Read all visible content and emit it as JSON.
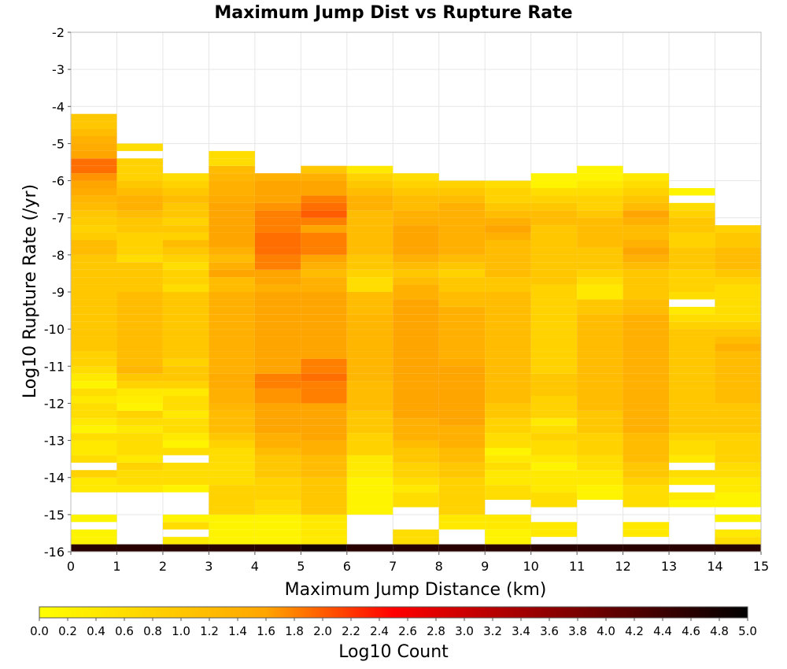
{
  "chart_data": {
    "type": "heatmap",
    "title": "Maximum Jump Dist vs Rupture Rate",
    "xlabel": "Maximum Jump Distance (km)",
    "ylabel": "Log10 Rupture Rate (/yr)",
    "xlim": [
      0,
      15
    ],
    "ylim": [
      -16,
      -2
    ],
    "x_ticks": [
      0,
      1,
      2,
      3,
      4,
      5,
      6,
      7,
      8,
      9,
      10,
      11,
      12,
      13,
      14,
      15
    ],
    "y_ticks": [
      -16,
      -15,
      -14,
      -13,
      -12,
      -11,
      -10,
      -9,
      -8,
      -7,
      -6,
      -5,
      -4,
      -3,
      -2
    ],
    "grid": true,
    "x_bins_center": [
      0.5,
      1.5,
      2.5,
      3.5,
      4.5,
      5.5,
      6.5,
      7.5,
      8.5,
      9.5,
      10.5,
      11.5,
      12.5,
      13.5,
      14.5
    ],
    "y_bin_width": 0.2,
    "columns": [
      {
        "x": 0.5,
        "y_start": -15.9,
        "values": [
          4.6,
          0.2,
          0.2,
          0,
          0.2,
          0,
          0,
          0,
          0.4,
          0.4,
          0.8,
          0,
          0.6,
          0.4,
          0.4,
          0.6,
          0.2,
          0.4,
          0.6,
          0.6,
          0.4,
          0.6,
          0.2,
          0.4,
          0.6,
          0.8,
          0.8,
          1.0,
          1.0,
          1.0,
          1.0,
          1.0,
          1.0,
          1.0,
          1.0,
          1.0,
          1.0,
          1.0,
          1.0,
          1.0,
          1.2,
          1.2,
          0.9,
          0.8,
          0.9,
          1.0,
          1.2,
          1.3,
          1.5,
          1.6,
          1.7,
          1.9,
          1.9,
          1.6,
          1.5,
          1.4,
          1.2,
          1.0,
          1.0
        ]
      },
      {
        "x": 1.5,
        "y_start": -15.9,
        "values": [
          4.6,
          0,
          0,
          0,
          0,
          0,
          0,
          0,
          0.4,
          0.6,
          0.6,
          0.8,
          0.4,
          0.6,
          0.6,
          0.6,
          0.4,
          0.6,
          0.8,
          0.2,
          0.3,
          0.4,
          0.8,
          1.0,
          1.3,
          1.2,
          1.2,
          1.2,
          1.2,
          1.2,
          1.2,
          1.2,
          1.2,
          1.2,
          1.2,
          1.0,
          1.0,
          1.0,
          1.0,
          0.6,
          0.8,
          0.8,
          0.8,
          1.0,
          1.0,
          1.2,
          1.4,
          1.4,
          1.2,
          1.0,
          0.8,
          0.8,
          0.8,
          0,
          0.6
        ]
      },
      {
        "x": 2.5,
        "y_start": -15.9,
        "values": [
          4.6,
          0.4,
          0,
          0.6,
          0.2,
          0,
          0,
          0,
          0.2,
          0.6,
          0.6,
          0.6,
          0,
          0.6,
          0.2,
          0.4,
          0.6,
          0.6,
          0.4,
          0.6,
          0.6,
          0.4,
          0.8,
          1.0,
          1.0,
          0.8,
          1.0,
          1.0,
          1.0,
          1.0,
          1.0,
          1.0,
          1.0,
          1.0,
          1.0,
          0.6,
          0.8,
          0.8,
          0.6,
          0.8,
          1.0,
          1.2,
          0.8,
          1.0,
          0.8,
          1.0,
          1.0,
          1.2,
          1.0,
          0.8,
          0.6
        ]
      },
      {
        "x": 3.5,
        "y_start": -15.9,
        "values": [
          4.6,
          0.2,
          0.2,
          0.2,
          0.2,
          0.8,
          0.8,
          0.8,
          0.8,
          0.6,
          0.6,
          0.6,
          0.6,
          0.6,
          0.8,
          1.0,
          1.2,
          1.2,
          1.2,
          1.3,
          1.4,
          1.4,
          1.5,
          1.5,
          1.4,
          1.4,
          1.4,
          1.4,
          1.4,
          1.4,
          1.4,
          1.4,
          1.4,
          1.4,
          1.4,
          1.2,
          1.2,
          1.6,
          1.4,
          1.2,
          1.4,
          1.6,
          1.6,
          1.6,
          1.6,
          1.6,
          1.6,
          1.5,
          1.4,
          1.4,
          1.3,
          1.2,
          0.6,
          0.6
        ]
      },
      {
        "x": 4.5,
        "y_start": -15.9,
        "values": [
          4.6,
          0.2,
          0.2,
          0.2,
          0.2,
          0.6,
          0.6,
          0.8,
          0.8,
          0.8,
          1.0,
          1.0,
          1.0,
          1.2,
          1.4,
          1.4,
          1.6,
          1.6,
          1.6,
          1.6,
          1.7,
          1.7,
          1.8,
          1.8,
          1.6,
          1.6,
          1.6,
          1.6,
          1.6,
          1.6,
          1.6,
          1.6,
          1.6,
          1.6,
          1.6,
          1.4,
          1.6,
          1.6,
          1.8,
          1.8,
          1.9,
          1.9,
          1.9,
          1.8,
          1.8,
          1.8,
          1.7,
          1.6,
          1.6,
          1.6,
          1.4
        ]
      },
      {
        "x": 5.5,
        "y_start": -15.9,
        "values": [
          4.8,
          0.4,
          0.4,
          0.4,
          0.4,
          1.0,
          1.0,
          1.0,
          1.0,
          1.0,
          1.2,
          1.2,
          1.2,
          1.4,
          1.4,
          1.6,
          1.6,
          1.6,
          1.6,
          1.6,
          1.8,
          1.8,
          1.8,
          1.9,
          1.8,
          1.8,
          1.6,
          1.6,
          1.6,
          1.6,
          1.6,
          1.6,
          1.6,
          1.6,
          1.6,
          1.4,
          1.4,
          1.2,
          1.4,
          1.6,
          1.8,
          1.8,
          1.8,
          1.6,
          1.8,
          2.0,
          1.9,
          1.8,
          1.6,
          1.6,
          1.4,
          1.0
        ]
      },
      {
        "x": 6.5,
        "y_start": -15.9,
        "values": [
          4.6,
          0,
          0,
          0,
          0,
          0.2,
          0.2,
          0.2,
          0.2,
          0.2,
          0.4,
          0.4,
          0.4,
          0.8,
          0.8,
          0.8,
          1.0,
          1.0,
          1.0,
          1.2,
          1.2,
          1.2,
          1.2,
          1.3,
          1.3,
          1.3,
          1.3,
          1.3,
          1.3,
          1.3,
          1.3,
          1.3,
          1.2,
          1.2,
          1.2,
          0.6,
          0.6,
          0.8,
          1.0,
          1.0,
          1.2,
          1.2,
          1.2,
          1.2,
          1.2,
          1.2,
          1.4,
          1.4,
          1.2,
          1.0,
          0.8,
          0.4
        ]
      },
      {
        "x": 7.5,
        "y_start": -15.9,
        "values": [
          4.6,
          0.6,
          0.6,
          0,
          0,
          0,
          0.6,
          0.6,
          0.4,
          0.6,
          0.8,
          0.8,
          1.0,
          1.0,
          1.2,
          1.4,
          1.4,
          1.4,
          1.6,
          1.6,
          1.6,
          1.6,
          1.6,
          1.6,
          1.6,
          1.6,
          1.6,
          1.6,
          1.6,
          1.6,
          1.6,
          1.6,
          1.6,
          1.6,
          1.4,
          1.4,
          1.2,
          1.0,
          1.2,
          1.4,
          1.6,
          1.6,
          1.6,
          1.6,
          1.4,
          1.4,
          1.2,
          1.2,
          1.0,
          0.8,
          0.6
        ]
      },
      {
        "x": 8.5,
        "y_start": -15.9,
        "values": [
          4.6,
          0,
          0,
          0.4,
          0.4,
          0.8,
          0.8,
          0.8,
          0.8,
          0.8,
          1.0,
          1.0,
          1.2,
          1.2,
          1.4,
          1.4,
          1.4,
          1.6,
          1.6,
          1.6,
          1.6,
          1.6,
          1.6,
          1.6,
          1.6,
          1.5,
          1.4,
          1.4,
          1.4,
          1.4,
          1.4,
          1.4,
          1.4,
          1.2,
          1.2,
          1.0,
          1.0,
          0.8,
          1.0,
          1.2,
          1.4,
          1.4,
          1.4,
          1.4,
          1.4,
          1.4,
          1.4,
          1.2,
          1.0,
          0.8
        ]
      },
      {
        "x": 9.5,
        "y_start": -15.9,
        "values": [
          4.6,
          0.2,
          0.2,
          0.4,
          0.4,
          0,
          0,
          0.6,
          0.6,
          0.4,
          0.4,
          0.6,
          0.4,
          0.2,
          0.6,
          0.6,
          0.8,
          0.8,
          1.0,
          1.0,
          1.2,
          1.2,
          1.2,
          1.2,
          1.2,
          1.2,
          1.2,
          1.2,
          1.2,
          1.2,
          1.2,
          1.2,
          1.2,
          1.2,
          1.2,
          1.0,
          1.0,
          1.2,
          1.2,
          1.2,
          1.2,
          1.2,
          1.4,
          1.6,
          1.4,
          1.2,
          1.0,
          0.8,
          0.8,
          0.6
        ]
      },
      {
        "x": 10.5,
        "y_start": -15.9,
        "values": [
          4.6,
          0,
          0.4,
          0.4,
          0,
          0,
          0.6,
          0.6,
          0.4,
          0.4,
          0.4,
          0.2,
          0.4,
          0.6,
          0.6,
          0.8,
          0.6,
          0.4,
          0.8,
          0.8,
          0.8,
          1.0,
          1.0,
          1.0,
          0.8,
          0.8,
          0.8,
          0.8,
          0.8,
          0.8,
          0.8,
          0.8,
          0.8,
          0.8,
          0.8,
          0.8,
          1.0,
          1.0,
          1.0,
          1.0,
          1.0,
          1.0,
          1.0,
          1.0,
          1.2,
          1.2,
          1.0,
          0.8,
          0.6,
          0.2,
          0.2
        ]
      },
      {
        "x": 11.5,
        "y_start": -15.9,
        "values": [
          4.6,
          0,
          0,
          0,
          0,
          0,
          0,
          0.2,
          0.2,
          0.4,
          0.4,
          0.6,
          0.6,
          0.8,
          0.8,
          0.8,
          1.0,
          1.0,
          1.0,
          1.2,
          1.2,
          1.2,
          1.2,
          1.2,
          1.2,
          1.2,
          1.2,
          1.2,
          1.2,
          1.2,
          1.2,
          1.2,
          1.0,
          1.0,
          0.4,
          0.4,
          0.6,
          0.8,
          1.0,
          1.0,
          1.0,
          1.2,
          1.2,
          1.2,
          1.2,
          1.0,
          0.8,
          0.8,
          0.6,
          0.4,
          0.2,
          0.2
        ]
      },
      {
        "x": 12.5,
        "y_start": -15.9,
        "values": [
          4.6,
          0,
          0.4,
          0.4,
          0,
          0,
          0.6,
          0.6,
          0.6,
          0.8,
          1.0,
          1.0,
          1.2,
          1.2,
          1.2,
          1.2,
          1.4,
          1.4,
          1.4,
          1.4,
          1.4,
          1.4,
          1.4,
          1.4,
          1.4,
          1.4,
          1.4,
          1.4,
          1.4,
          1.4,
          1.4,
          1.4,
          1.2,
          1.2,
          1.0,
          1.0,
          1.0,
          1.0,
          1.2,
          1.4,
          1.6,
          1.4,
          1.2,
          1.2,
          1.4,
          1.6,
          1.2,
          1.0,
          0.8,
          0.6,
          0.4
        ]
      },
      {
        "x": 13.5,
        "y_start": -15.9,
        "values": [
          4.6,
          0,
          0,
          0,
          0,
          0,
          0.2,
          0.4,
          0,
          0.4,
          0.6,
          0,
          0.4,
          0.6,
          0.6,
          0.8,
          1.0,
          1.0,
          1.0,
          1.0,
          1.0,
          1.0,
          1.0,
          1.0,
          1.0,
          1.0,
          1.0,
          1.0,
          1.0,
          1.0,
          0.8,
          0.6,
          0.4,
          0,
          0.6,
          0.8,
          0.8,
          0.8,
          1.0,
          1.0,
          1.0,
          0.8,
          0.8,
          1.0,
          1.0,
          0.8,
          0.6,
          0,
          0.2
        ]
      },
      {
        "x": 14.5,
        "y_start": -15.9,
        "values": [
          4.6,
          0.6,
          0.4,
          0,
          0.2,
          0,
          0.2,
          0.2,
          0.4,
          0.4,
          0.6,
          0.6,
          0.8,
          0.8,
          0.8,
          0.8,
          1.0,
          1.0,
          1.0,
          1.0,
          1.2,
          1.2,
          1.2,
          1.2,
          1.2,
          1.2,
          1.2,
          1.4,
          1.2,
          1.0,
          0.8,
          0.6,
          0.6,
          0.6,
          0.6,
          0.6,
          0.8,
          1.0,
          1.2,
          1.2,
          1.2,
          1.0,
          1.0,
          0.8
        ]
      }
    ],
    "colorbar": {
      "label": "Log10 Count",
      "range": [
        0.0,
        5.0
      ],
      "ticks": [
        "0.0",
        "0.2",
        "0.4",
        "0.6",
        "0.8",
        "1.0",
        "1.2",
        "1.4",
        "1.6",
        "1.8",
        "2.0",
        "2.2",
        "2.4",
        "2.6",
        "2.8",
        "3.0",
        "3.2",
        "3.4",
        "3.6",
        "3.8",
        "4.0",
        "4.2",
        "4.4",
        "4.6",
        "4.8",
        "5.0"
      ],
      "colors": [
        "#ffff00",
        "#ffa500",
        "#ff0000",
        "#000000"
      ],
      "color_stops": [
        0.0,
        1.6,
        2.5,
        5.0
      ]
    }
  }
}
